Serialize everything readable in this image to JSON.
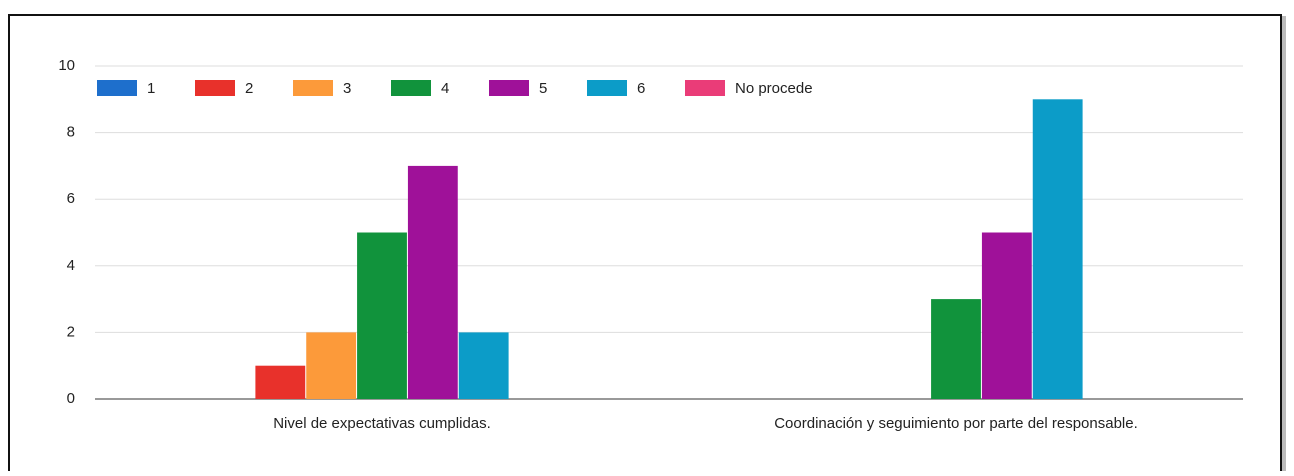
{
  "chart_data": {
    "type": "bar",
    "categories": [
      "Nivel de expectativas cumplidas.",
      "Coordinación y seguimiento por parte del responsable."
    ],
    "series": [
      {
        "name": "1",
        "color": "#1e6fcc",
        "values": [
          0,
          0
        ]
      },
      {
        "name": "2",
        "color": "#e8312b",
        "values": [
          1,
          0
        ]
      },
      {
        "name": "3",
        "color": "#fc9a3a",
        "values": [
          2,
          0
        ]
      },
      {
        "name": "4",
        "color": "#11933c",
        "values": [
          5,
          3
        ]
      },
      {
        "name": "5",
        "color": "#9f1199",
        "values": [
          7,
          5
        ]
      },
      {
        "name": "6",
        "color": "#0c9cc8",
        "values": [
          2,
          9
        ]
      },
      {
        "name": "No procede",
        "color": "#ea3c78",
        "values": [
          0,
          0
        ]
      }
    ],
    "ylim": [
      0,
      10
    ],
    "yticks": [
      0,
      2,
      4,
      6,
      8,
      10
    ],
    "grid": true,
    "legend": "top"
  }
}
